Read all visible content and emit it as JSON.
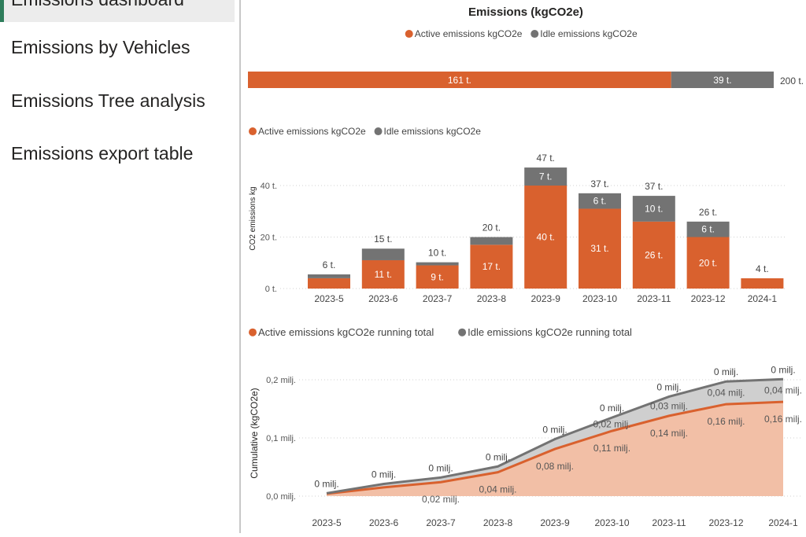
{
  "sidebar": {
    "active_item": "Emissions dashboard",
    "items": [
      {
        "label": "Emissions by Vehicles"
      },
      {
        "label": "Emissions Tree analysis"
      },
      {
        "label": "Emissions export table"
      }
    ]
  },
  "colors": {
    "active": "#d9612e",
    "idle": "#737373",
    "active_area": "#f2bfa6",
    "idle_area": "#cfcfcf",
    "accent": "#2e7d5b"
  },
  "chart_data": [
    {
      "type": "bar",
      "orientation": "horizontal",
      "stacked": true,
      "title": "Emissions (kgCO2e)",
      "legend": [
        "Active emissions kgCO2e",
        "Idle emissions kgCO2e"
      ],
      "legend_position": "top-center",
      "series": [
        {
          "name": "Active emissions kgCO2e",
          "values": [
            161
          ],
          "labels": [
            "161 t."
          ]
        },
        {
          "name": "Idle emissions kgCO2e",
          "values": [
            39
          ],
          "labels": [
            "39 t."
          ]
        }
      ],
      "total_label": "200 t."
    },
    {
      "type": "bar",
      "stacked": true,
      "legend": [
        "Active emissions kgCO2e",
        "Idle emissions kgCO2e"
      ],
      "legend_position": "top-left",
      "ylabel": "CO2 emissions kg",
      "ylim": [
        0,
        50
      ],
      "y_ticks": [
        {
          "value": 0,
          "label": "0 t."
        },
        {
          "value": 20,
          "label": "20 t."
        },
        {
          "value": 40,
          "label": "40 t."
        }
      ],
      "categories": [
        "2023-5",
        "2023-6",
        "2023-7",
        "2023-8",
        "2023-9",
        "2023-10",
        "2023-11",
        "2023-12",
        "2024-1"
      ],
      "series": [
        {
          "name": "Active emissions kgCO2e",
          "values": [
            4,
            11,
            9,
            17,
            40,
            31,
            26,
            20,
            4
          ],
          "labels": [
            "",
            "11 t.",
            "9 t.",
            "17 t.",
            "40 t.",
            "31 t.",
            "26 t.",
            "20 t.",
            ""
          ]
        },
        {
          "name": "Idle emissions kgCO2e",
          "values": [
            1.5,
            4.5,
            1.2,
            3,
            7,
            6,
            10,
            6,
            0
          ],
          "labels": [
            "",
            "",
            "",
            "",
            "7 t.",
            "6 t.",
            "10 t.",
            "6 t.",
            ""
          ]
        }
      ],
      "totals": [
        "6 t.",
        "15 t.",
        "10 t.",
        "20 t.",
        "47 t.",
        "37 t.",
        "37 t.",
        "26 t.",
        "4 t."
      ]
    },
    {
      "type": "area",
      "stacked": true,
      "legend": [
        "Active emissions kgCO2e running total",
        "Idle emissions kgCO2e running total"
      ],
      "legend_position": "top-left",
      "ylabel": "Cumulative (kgCO2e)",
      "ylim": [
        0,
        0.2
      ],
      "y_ticks": [
        {
          "value": 0,
          "label": "0,0 milj."
        },
        {
          "value": 0.1,
          "label": "0,1 milj."
        },
        {
          "value": 0.2,
          "label": "0,2 milj."
        }
      ],
      "grid": true,
      "categories": [
        "2023-5",
        "2023-6",
        "2023-7",
        "2023-8",
        "2023-9",
        "2023-10",
        "2023-11",
        "2023-12",
        "2024-1"
      ],
      "series": [
        {
          "name": "Active emissions kgCO2e running total",
          "values": [
            0.004,
            0.015,
            0.024,
            0.041,
            0.081,
            0.112,
            0.138,
            0.158,
            0.162
          ],
          "labels": [
            "",
            "",
            "0,02 milj.",
            "0,04 milj.",
            "0,08 milj.",
            "0,11 milj.",
            "0,14 milj.",
            "0,16 milj.",
            "0,16 milj."
          ]
        },
        {
          "name": "Idle emissions kgCO2e running total",
          "values": [
            0.001,
            0.006,
            0.008,
            0.01,
            0.017,
            0.023,
            0.033,
            0.039,
            0.039
          ],
          "labels": [
            "",
            "",
            "",
            "",
            "",
            "0,02 milj.",
            "0,03 milj.",
            "0,04 milj.",
            "0,04 milj."
          ]
        }
      ],
      "total_labels": [
        "0 milj.",
        "0 milj.",
        "0 milj.",
        "0 milj.",
        "0 milj.",
        "0 milj.",
        "0 milj.",
        "0 milj.",
        "0 milj."
      ]
    }
  ]
}
